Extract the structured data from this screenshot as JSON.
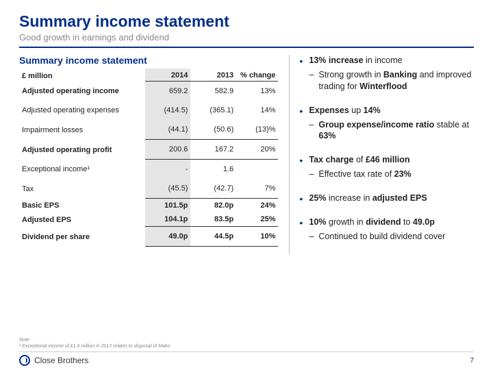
{
  "title": "Summary income statement",
  "subtitle": "Good growth in earnings and dividend",
  "table": {
    "title": "Summary income statement",
    "unit_label": "£ million",
    "col_headers": [
      "2014",
      "2013",
      "% change"
    ],
    "rows": [
      {
        "label": "Adjusted operating income",
        "c2014": "659.2",
        "c2013": "582.9",
        "chg": "13%",
        "bold": true,
        "line": false
      },
      {
        "label": "Adjusted operating expenses",
        "c2014": "(414.5)",
        "c2013": "(365.1)",
        "chg": "14%",
        "bold": false,
        "line": false
      },
      {
        "label": "Impairment losses",
        "c2014": "(44.1)",
        "c2013": "(50.6)",
        "chg": "(13)%",
        "bold": false,
        "line": true
      },
      {
        "label": "Adjusted operating profit",
        "c2014": "200.6",
        "c2013": "167.2",
        "chg": "20%",
        "bold": true,
        "line": true
      },
      {
        "label": "Exceptional income¹",
        "c2014": "-",
        "c2013": "1.6",
        "chg": "",
        "bold": false,
        "line": false
      },
      {
        "label": "Tax",
        "c2014": "(45.5)",
        "c2013": "(42.7)",
        "chg": "7%",
        "bold": false,
        "line": true
      },
      {
        "label": "Basic EPS",
        "c2014": "101.5p",
        "c2013": "82.0p",
        "chg": "24%",
        "boldrow": true,
        "line": false,
        "tight": true
      },
      {
        "label": "Adjusted EPS",
        "c2014": "104.1p",
        "c2013": "83.5p",
        "chg": "25%",
        "boldrow": true,
        "line": true,
        "tight": true
      },
      {
        "label": "Dividend per share",
        "c2014": "49.0p",
        "c2013": "44.5p",
        "chg": "10%",
        "boldrow": true,
        "line": true
      }
    ]
  },
  "highlights": [
    {
      "segments": [
        {
          "t": "13% increase",
          "b": true
        },
        {
          "t": " in income",
          "b": false
        }
      ],
      "sub": [
        {
          "segments": [
            {
              "t": "Strong growth in ",
              "b": false
            },
            {
              "t": "Banking",
              "b": true
            },
            {
              "t": " and improved trading for ",
              "b": false
            },
            {
              "t": "Winterflood",
              "b": true
            }
          ]
        }
      ]
    },
    {
      "segments": [
        {
          "t": "Expenses",
          "b": true
        },
        {
          "t": " up ",
          "b": false
        },
        {
          "t": "14%",
          "b": true
        }
      ],
      "sub": [
        {
          "segments": [
            {
              "t": "Group expense/income ratio",
              "b": true
            },
            {
              "t": " stable at ",
              "b": false
            },
            {
              "t": "63%",
              "b": true
            }
          ]
        }
      ]
    },
    {
      "segments": [
        {
          "t": "Tax charge",
          "b": true
        },
        {
          "t": " of ",
          "b": false
        },
        {
          "t": "£46 million",
          "b": true
        }
      ],
      "sub": [
        {
          "segments": [
            {
              "t": "Effective tax rate of ",
              "b": false
            },
            {
              "t": "23%",
              "b": true
            }
          ]
        }
      ]
    },
    {
      "segments": [
        {
          "t": "25%",
          "b": true
        },
        {
          "t": " increase in ",
          "b": false
        },
        {
          "t": "adjusted EPS",
          "b": true
        }
      ],
      "sub": []
    },
    {
      "segments": [
        {
          "t": "10%",
          "b": true
        },
        {
          "t": " growth in ",
          "b": false
        },
        {
          "t": "dividend",
          "b": true
        },
        {
          "t": " to ",
          "b": false
        },
        {
          "t": "49.0p",
          "b": true
        }
      ],
      "sub": [
        {
          "segments": [
            {
              "t": "Continued to build dividend cover",
              "b": false
            }
          ]
        }
      ]
    }
  ],
  "footnote_label": "Note:",
  "footnote_text": "¹ Exceptional income of £1.6 million in 2013 relates to disposal of Mako.",
  "logo_text": "Close Brothers",
  "page_number": "7",
  "colors": {
    "primary": "#002f87",
    "muted": "#888888",
    "highlight_col": "#e5e5e5",
    "text": "#222222"
  }
}
